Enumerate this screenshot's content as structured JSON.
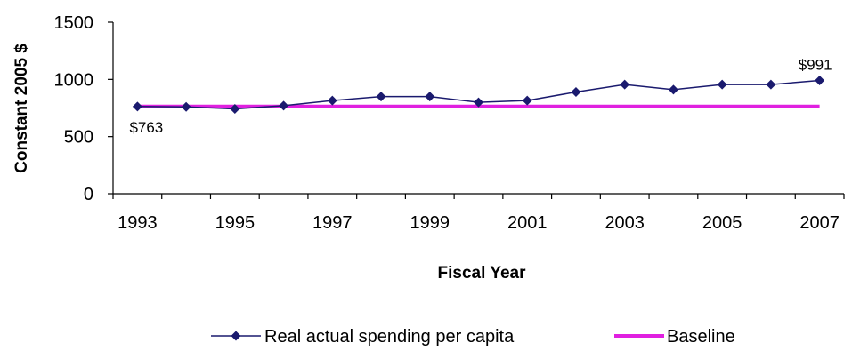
{
  "chart_data": {
    "type": "line",
    "x": [
      1993,
      1994,
      1995,
      1996,
      1997,
      1998,
      1999,
      2000,
      2001,
      2002,
      2003,
      2004,
      2005,
      2006,
      2007
    ],
    "series": [
      {
        "name": "Real actual spending per capita",
        "values": [
          763,
          760,
          742,
          770,
          815,
          850,
          850,
          800,
          815,
          890,
          955,
          910,
          955,
          955,
          991
        ],
        "color": "#1a1a6e",
        "marker": "diamond"
      },
      {
        "name": "Baseline",
        "values": [
          763,
          763,
          763,
          763,
          763,
          763,
          763,
          763,
          763,
          763,
          763,
          763,
          763,
          763,
          763
        ],
        "color": "#e020e0",
        "marker": "none"
      }
    ],
    "xlabel": "Fiscal Year",
    "ylabel": "Constant 2005 $",
    "ylim": [
      0,
      1500
    ],
    "y_ticks": [
      "0",
      "500",
      "1000",
      "1500"
    ],
    "x_tick_labels": [
      "1993",
      "1995",
      "1997",
      "1999",
      "2001",
      "2003",
      "2005",
      "2007"
    ],
    "annotations": [
      {
        "text": "$763",
        "x": 1993
      },
      {
        "text": "$991",
        "x": 2007
      }
    ],
    "grid": false,
    "legend": "bottom"
  }
}
